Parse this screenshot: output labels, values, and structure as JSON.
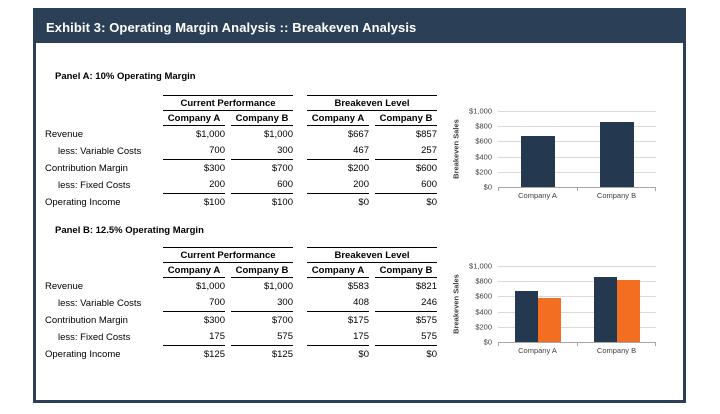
{
  "header": {
    "title": "Exhibit 3: Operating Margin Analysis :: Breakeven Analysis",
    "bg_color": "#2B4056",
    "text_color": "#FFFFFF"
  },
  "colors": {
    "frame_border": "#2B4056",
    "bar_navy": "#24394F",
    "bar_orange": "#F36E20",
    "gridline": "#D9D9D9",
    "axis": "#A6A6A6"
  },
  "panels": [
    {
      "title": "Panel A: 10% Operating Margin",
      "table": {
        "group_headers": [
          "Current Performance",
          "Breakeven Level"
        ],
        "col_headers": [
          "Company A",
          "Company B",
          "Company A",
          "Company B"
        ],
        "rows": [
          {
            "label": "Revenue",
            "indent": false,
            "underline": false,
            "values": [
              "$1,000",
              "$1,000",
              "$667",
              "$857"
            ]
          },
          {
            "label": "less: Variable Costs",
            "indent": true,
            "underline": true,
            "values": [
              "700",
              "300",
              "467",
              "257"
            ]
          },
          {
            "label": "Contribution Margin",
            "indent": false,
            "underline": false,
            "values": [
              "$300",
              "$700",
              "$200",
              "$600"
            ]
          },
          {
            "label": "less: Fixed Costs",
            "indent": true,
            "underline": true,
            "values": [
              "200",
              "600",
              "200",
              "600"
            ]
          },
          {
            "label": "Operating Income",
            "indent": false,
            "underline": false,
            "values": [
              "$100",
              "$100",
              "$0",
              "$0"
            ]
          }
        ]
      }
    },
    {
      "title": "Panel B: 12.5% Operating Margin",
      "table": {
        "group_headers": [
          "Current Performance",
          "Breakeven Level"
        ],
        "col_headers": [
          "Company A",
          "Company B",
          "Company A",
          "Company B"
        ],
        "rows": [
          {
            "label": "Revenue",
            "indent": false,
            "underline": false,
            "values": [
              "$1,000",
              "$1,000",
              "$583",
              "$821"
            ]
          },
          {
            "label": "less: Variable Costs",
            "indent": true,
            "underline": true,
            "values": [
              "700",
              "300",
              "408",
              "246"
            ]
          },
          {
            "label": "Contribution Margin",
            "indent": false,
            "underline": false,
            "values": [
              "$300",
              "$700",
              "$175",
              "$575"
            ]
          },
          {
            "label": "less: Fixed Costs",
            "indent": true,
            "underline": true,
            "values": [
              "175",
              "575",
              "175",
              "575"
            ]
          },
          {
            "label": "Operating Income",
            "indent": false,
            "underline": false,
            "values": [
              "$125",
              "$125",
              "$0",
              "$0"
            ]
          }
        ]
      }
    }
  ],
  "chart_data": [
    {
      "type": "bar",
      "categories": [
        "Company A",
        "Company B"
      ],
      "series": [
        {
          "name": "navy",
          "color": "#24394F",
          "values": [
            667,
            857
          ]
        }
      ],
      "ylabel": "Breakeven Sales",
      "xlabel": "",
      "ylim": [
        0,
        1000
      ],
      "yticks": [
        {
          "label": "$0",
          "value": 0
        },
        {
          "label": "$200",
          "value": 200
        },
        {
          "label": "$400",
          "value": 400
        },
        {
          "label": "$600",
          "value": 600
        },
        {
          "label": "$800",
          "value": 800
        },
        {
          "label": "$1,000",
          "value": 1000
        }
      ],
      "grid": true,
      "legend": "none"
    },
    {
      "type": "bar",
      "categories": [
        "Company A",
        "Company B"
      ],
      "series": [
        {
          "name": "navy",
          "color": "#24394F",
          "values": [
            667,
            857
          ]
        },
        {
          "name": "orange",
          "color": "#F36E20",
          "values": [
            583,
            821
          ]
        }
      ],
      "ylabel": "Breakeven Sales",
      "xlabel": "",
      "ylim": [
        0,
        1000
      ],
      "yticks": [
        {
          "label": "$0",
          "value": 0
        },
        {
          "label": "$200",
          "value": 200
        },
        {
          "label": "$400",
          "value": 400
        },
        {
          "label": "$600",
          "value": 600
        },
        {
          "label": "$800",
          "value": 800
        },
        {
          "label": "$1,000",
          "value": 1000
        }
      ],
      "grid": true,
      "legend": "none"
    }
  ]
}
